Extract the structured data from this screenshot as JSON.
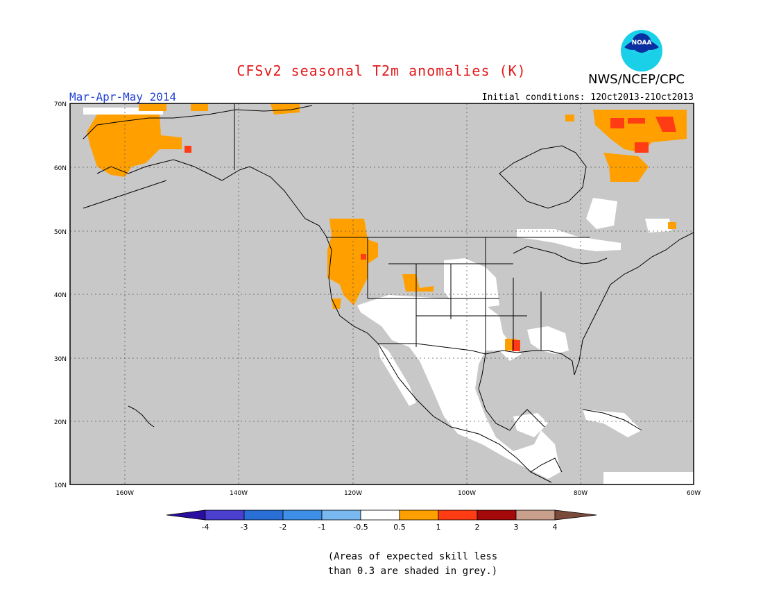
{
  "header": {
    "title": "CFSv2 seasonal T2m anomalies (K)",
    "title_color": "#e31a1c",
    "subtitle": "Mar-Apr-May 2014",
    "initial_conditions": "Initial conditions: 12Oct2013-21Oct2013",
    "agency": "NWS/NCEP/CPC",
    "logo_icon": "noaa-logo-icon"
  },
  "map": {
    "lat_labels": [
      "70N",
      "60N",
      "50N",
      "40N",
      "30N",
      "20N",
      "10N"
    ],
    "lon_labels": [
      "160W",
      "140W",
      "120W",
      "100W",
      "80W",
      "60W"
    ],
    "land_color": "#c8c8c8",
    "no_skill_color": "#c8c8c8"
  },
  "colorbar": {
    "ticks": [
      "-4",
      "-3",
      "-2",
      "-1",
      "-0.5",
      "0.5",
      "1",
      "2",
      "3",
      "4"
    ],
    "colors": [
      "#2a0ea0",
      "#4b3fd0",
      "#2a6fd6",
      "#3d8fe8",
      "#7ab8f0",
      "#ffffff",
      "#ffa000",
      "#ff3c14",
      "#a50a0a",
      "#c8a08c",
      "#7a4a3a"
    ]
  },
  "note": {
    "line1": "(Areas of expected skill less",
    "line2": "than 0.3 are shaded in grey.)"
  }
}
